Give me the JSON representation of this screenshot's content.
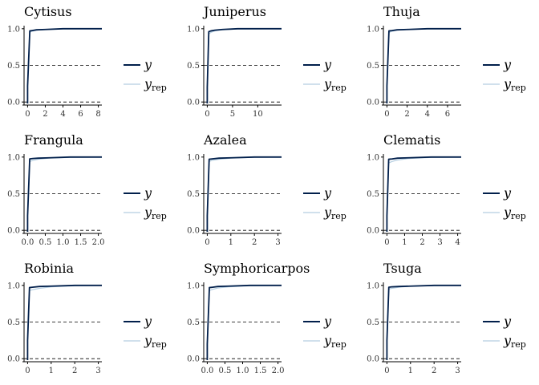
{
  "colors": {
    "y": "#011f4b",
    "yrep": "#b3cde0",
    "axis": "#000000",
    "reference": "#000000"
  },
  "legend": {
    "y_label": "y",
    "yrep_label": "y",
    "yrep_subscript": "rep"
  },
  "chart_data": [
    {
      "type": "line",
      "title": "Cytisus",
      "xlim": [
        -0.4,
        8.4
      ],
      "ylim": [
        -0.02,
        1.02
      ],
      "xticks": [
        0,
        2,
        4,
        6,
        8
      ],
      "xtick_labels": [
        "0",
        "2",
        "4",
        "6",
        "8"
      ],
      "yticks": [
        0,
        0.5,
        1
      ],
      "ytick_labels": [
        "0.0",
        "0.5",
        "1.0"
      ],
      "hlines": [
        0,
        0.5
      ],
      "series": [
        {
          "name": "y",
          "x": [
            0,
            0.25,
            0.5,
            1,
            2,
            4,
            8.4
          ],
          "values": [
            0.22,
            0.97,
            0.975,
            0.985,
            0.99,
            1.0,
            1.0
          ]
        },
        {
          "name": "y_rep",
          "x": [
            0,
            0.25,
            0.5,
            1,
            2,
            4,
            8.4
          ],
          "values": [
            0.22,
            0.95,
            0.965,
            0.98,
            0.99,
            0.998,
            1.0
          ]
        }
      ]
    },
    {
      "type": "line",
      "title": "Juniperus",
      "xlim": [
        -0.7,
        14.7
      ],
      "ylim": [
        -0.02,
        1.02
      ],
      "xticks": [
        0,
        5,
        10
      ],
      "xtick_labels": [
        "0",
        "5",
        "10"
      ],
      "yticks": [
        0,
        0.5,
        1
      ],
      "ytick_labels": [
        "0.0",
        "0.5",
        "1.0"
      ],
      "hlines": [
        0,
        0.5
      ],
      "series": [
        {
          "name": "y",
          "x": [
            0,
            0.3,
            0.7,
            1.5,
            3,
            6,
            14.7
          ],
          "values": [
            0.2,
            0.96,
            0.97,
            0.98,
            0.99,
            1.0,
            1.0
          ]
        },
        {
          "name": "y_rep",
          "x": [
            0,
            0.3,
            0.7,
            1.5,
            3,
            6,
            14.7
          ],
          "values": [
            0.2,
            0.93,
            0.95,
            0.97,
            0.985,
            0.997,
            1.0
          ]
        }
      ]
    },
    {
      "type": "line",
      "title": "Thuja",
      "xlim": [
        -0.35,
        7.35
      ],
      "ylim": [
        -0.02,
        1.02
      ],
      "xticks": [
        0,
        2,
        4,
        6
      ],
      "xtick_labels": [
        "0",
        "2",
        "4",
        "6"
      ],
      "yticks": [
        0,
        0.5,
        1
      ],
      "ytick_labels": [
        "0.0",
        "0.5",
        "1.0"
      ],
      "hlines": [
        0,
        0.5
      ],
      "series": [
        {
          "name": "y",
          "x": [
            0,
            0.2,
            0.5,
            1,
            2,
            4,
            7.35
          ],
          "values": [
            0.22,
            0.97,
            0.975,
            0.985,
            0.99,
            1.0,
            1.0
          ]
        },
        {
          "name": "y_rep",
          "x": [
            0,
            0.2,
            0.5,
            1,
            2,
            4,
            7.35
          ],
          "values": [
            0.22,
            0.95,
            0.965,
            0.98,
            0.99,
            0.998,
            1.0
          ]
        }
      ]
    },
    {
      "type": "line",
      "title": "Frangula",
      "xlim": [
        -0.1,
        2.1
      ],
      "ylim": [
        -0.02,
        1.02
      ],
      "xticks": [
        0,
        0.5,
        1,
        1.5,
        2
      ],
      "xtick_labels": [
        "0.0",
        "0.5",
        "1.0",
        "1.5",
        "2.0"
      ],
      "yticks": [
        0,
        0.5,
        1
      ],
      "ytick_labels": [
        "0.0",
        "0.5",
        "1.0"
      ],
      "hlines": [
        0,
        0.5
      ],
      "series": [
        {
          "name": "y",
          "x": [
            0,
            0.06,
            0.15,
            0.3,
            0.6,
            1.2,
            2.1
          ],
          "values": [
            0.2,
            0.975,
            0.98,
            0.985,
            0.99,
            1.0,
            1.0
          ]
        },
        {
          "name": "y_rep",
          "x": [
            0,
            0.06,
            0.15,
            0.3,
            0.6,
            1.2,
            2.1
          ],
          "values": [
            0.2,
            0.94,
            0.955,
            0.97,
            0.985,
            0.995,
            1.0
          ]
        }
      ]
    },
    {
      "type": "line",
      "title": "Azalea",
      "xlim": [
        -0.15,
        3.15
      ],
      "ylim": [
        -0.02,
        1.02
      ],
      "xticks": [
        0,
        1,
        2,
        3
      ],
      "xtick_labels": [
        "0",
        "1",
        "2",
        "3"
      ],
      "yticks": [
        0,
        0.5,
        1
      ],
      "ytick_labels": [
        "0.0",
        "0.5",
        "1.0"
      ],
      "hlines": [
        0,
        0.5
      ],
      "series": [
        {
          "name": "y",
          "x": [
            0,
            0.08,
            0.2,
            0.5,
            1,
            2,
            3.15
          ],
          "values": [
            0.2,
            0.97,
            0.975,
            0.985,
            0.99,
            1.0,
            1.0
          ]
        },
        {
          "name": "y_rep",
          "x": [
            0,
            0.08,
            0.2,
            0.5,
            1,
            2,
            3.15
          ],
          "values": [
            0.2,
            0.94,
            0.955,
            0.97,
            0.985,
            0.997,
            1.0
          ]
        }
      ]
    },
    {
      "type": "line",
      "title": "Clematis",
      "xlim": [
        -0.2,
        4.2
      ],
      "ylim": [
        -0.02,
        1.02
      ],
      "xticks": [
        0,
        1,
        2,
        3,
        4
      ],
      "xtick_labels": [
        "0",
        "1",
        "2",
        "3",
        "4"
      ],
      "yticks": [
        0,
        0.5,
        1
      ],
      "ytick_labels": [
        "0.0",
        "0.5",
        "1.0"
      ],
      "hlines": [
        0,
        0.5
      ],
      "series": [
        {
          "name": "y",
          "x": [
            0,
            0.1,
            0.3,
            0.6,
            1.2,
            2.5,
            4.2
          ],
          "values": [
            0.2,
            0.97,
            0.975,
            0.985,
            0.99,
            1.0,
            1.0
          ]
        },
        {
          "name": "y_rep",
          "x": [
            0,
            0.1,
            0.3,
            0.6,
            1.2,
            2.5,
            4.2
          ],
          "values": [
            0.2,
            0.92,
            0.94,
            0.96,
            0.98,
            0.995,
            1.0
          ]
        }
      ]
    },
    {
      "type": "line",
      "title": "Robinia",
      "xlim": [
        -0.15,
        3.15
      ],
      "ylim": [
        -0.02,
        1.02
      ],
      "xticks": [
        0,
        1,
        2,
        3
      ],
      "xtick_labels": [
        "0",
        "1",
        "2",
        "3"
      ],
      "yticks": [
        0,
        0.5,
        1
      ],
      "ytick_labels": [
        "0.0",
        "0.5",
        "1.0"
      ],
      "hlines": [
        0,
        0.5
      ],
      "series": [
        {
          "name": "y",
          "x": [
            0,
            0.08,
            0.2,
            0.5,
            1,
            2,
            3.15
          ],
          "values": [
            0.25,
            0.97,
            0.975,
            0.985,
            0.99,
            1.0,
            1.0
          ]
        },
        {
          "name": "y_rep",
          "x": [
            0,
            0.08,
            0.2,
            0.5,
            1,
            2,
            3.15
          ],
          "values": [
            0.25,
            0.93,
            0.94,
            0.96,
            0.98,
            0.995,
            1.0
          ]
        }
      ]
    },
    {
      "type": "line",
      "title": "Symphoricarpos",
      "xlim": [
        -0.1,
        2.1
      ],
      "ylim": [
        -0.02,
        1.02
      ],
      "xticks": [
        0,
        0.5,
        1,
        1.5,
        2
      ],
      "xtick_labels": [
        "0.0",
        "0.5",
        "1.0",
        "1.5",
        "2.0"
      ],
      "yticks": [
        0,
        0.5,
        1
      ],
      "ytick_labels": [
        "0.0",
        "0.5",
        "1.0"
      ],
      "hlines": [
        0,
        0.5
      ],
      "series": [
        {
          "name": "y",
          "x": [
            0,
            0.06,
            0.15,
            0.3,
            0.6,
            1.2,
            2.1
          ],
          "values": [
            0.2,
            0.97,
            0.975,
            0.985,
            0.99,
            1.0,
            1.0
          ]
        },
        {
          "name": "y_rep",
          "x": [
            0,
            0.06,
            0.15,
            0.3,
            0.6,
            1.2,
            2.1
          ],
          "values": [
            0.2,
            0.93,
            0.945,
            0.965,
            0.98,
            0.995,
            1.0
          ]
        }
      ]
    },
    {
      "type": "line",
      "title": "Tsuga",
      "xlim": [
        -0.15,
        3.15
      ],
      "ylim": [
        -0.02,
        1.02
      ],
      "xticks": [
        0,
        1,
        2,
        3
      ],
      "xtick_labels": [
        "0",
        "1",
        "2",
        "3"
      ],
      "yticks": [
        0,
        0.5,
        1
      ],
      "ytick_labels": [
        "0.0",
        "0.5",
        "1.0"
      ],
      "hlines": [
        0,
        0.5
      ],
      "series": [
        {
          "name": "y",
          "x": [
            0,
            0.08,
            0.2,
            0.5,
            1,
            2,
            3.15
          ],
          "values": [
            0.25,
            0.975,
            0.98,
            0.985,
            0.99,
            1.0,
            1.0
          ]
        },
        {
          "name": "y_rep",
          "x": [
            0,
            0.08,
            0.2,
            0.5,
            1,
            2,
            3.15
          ],
          "values": [
            0.25,
            0.95,
            0.96,
            0.975,
            0.99,
            0.998,
            1.0
          ]
        }
      ]
    }
  ]
}
